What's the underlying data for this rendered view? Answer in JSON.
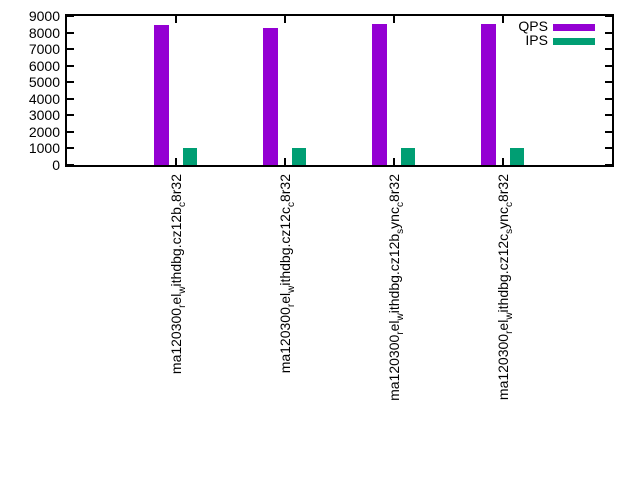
{
  "chart_data": {
    "type": "bar",
    "title": "",
    "background": "#ffffff",
    "axis_color": "#000000",
    "grid": false,
    "legend_position": "top-right",
    "ylim": [
      0,
      9000
    ],
    "yticks": [
      0,
      1000,
      2000,
      3000,
      4000,
      5000,
      6000,
      7000,
      8000,
      9000
    ],
    "xlabel": "",
    "ylabel": "",
    "categories": [
      {
        "segments": [
          {
            "text": "ma120300",
            "sub": false
          },
          {
            "text": "r",
            "sub": true
          },
          {
            "text": "el",
            "sub": false
          },
          {
            "text": "w",
            "sub": true
          },
          {
            "text": "ithdbg.cz12b",
            "sub": false
          },
          {
            "text": "c",
            "sub": true
          },
          {
            "text": "8r32",
            "sub": false
          }
        ]
      },
      {
        "segments": [
          {
            "text": "ma120300",
            "sub": false
          },
          {
            "text": "r",
            "sub": true
          },
          {
            "text": "el",
            "sub": false
          },
          {
            "text": "w",
            "sub": true
          },
          {
            "text": "ithdbg.cz12c",
            "sub": false
          },
          {
            "text": "c",
            "sub": true
          },
          {
            "text": "8r32",
            "sub": false
          }
        ]
      },
      {
        "segments": [
          {
            "text": "ma120300",
            "sub": false
          },
          {
            "text": "r",
            "sub": true
          },
          {
            "text": "el",
            "sub": false
          },
          {
            "text": "w",
            "sub": true
          },
          {
            "text": "ithdbg.cz12b",
            "sub": false
          },
          {
            "text": "s",
            "sub": true
          },
          {
            "text": "ync",
            "sub": false
          },
          {
            "text": "c",
            "sub": true
          },
          {
            "text": "8r32",
            "sub": false
          }
        ]
      },
      {
        "segments": [
          {
            "text": "ma120300",
            "sub": false
          },
          {
            "text": "r",
            "sub": true
          },
          {
            "text": "el",
            "sub": false
          },
          {
            "text": "w",
            "sub": true
          },
          {
            "text": "ithdbg.cz12c",
            "sub": false
          },
          {
            "text": "s",
            "sub": true
          },
          {
            "text": "ync",
            "sub": false
          },
          {
            "text": "c",
            "sub": true
          },
          {
            "text": "8r32",
            "sub": false
          }
        ]
      }
    ],
    "series": [
      {
        "name": "QPS",
        "color": "#9400d3",
        "values": [
          8450,
          8300,
          8500,
          8520
        ]
      },
      {
        "name": "IPS",
        "color": "#009e73",
        "values": [
          1000,
          1000,
          1000,
          1000
        ]
      }
    ]
  }
}
